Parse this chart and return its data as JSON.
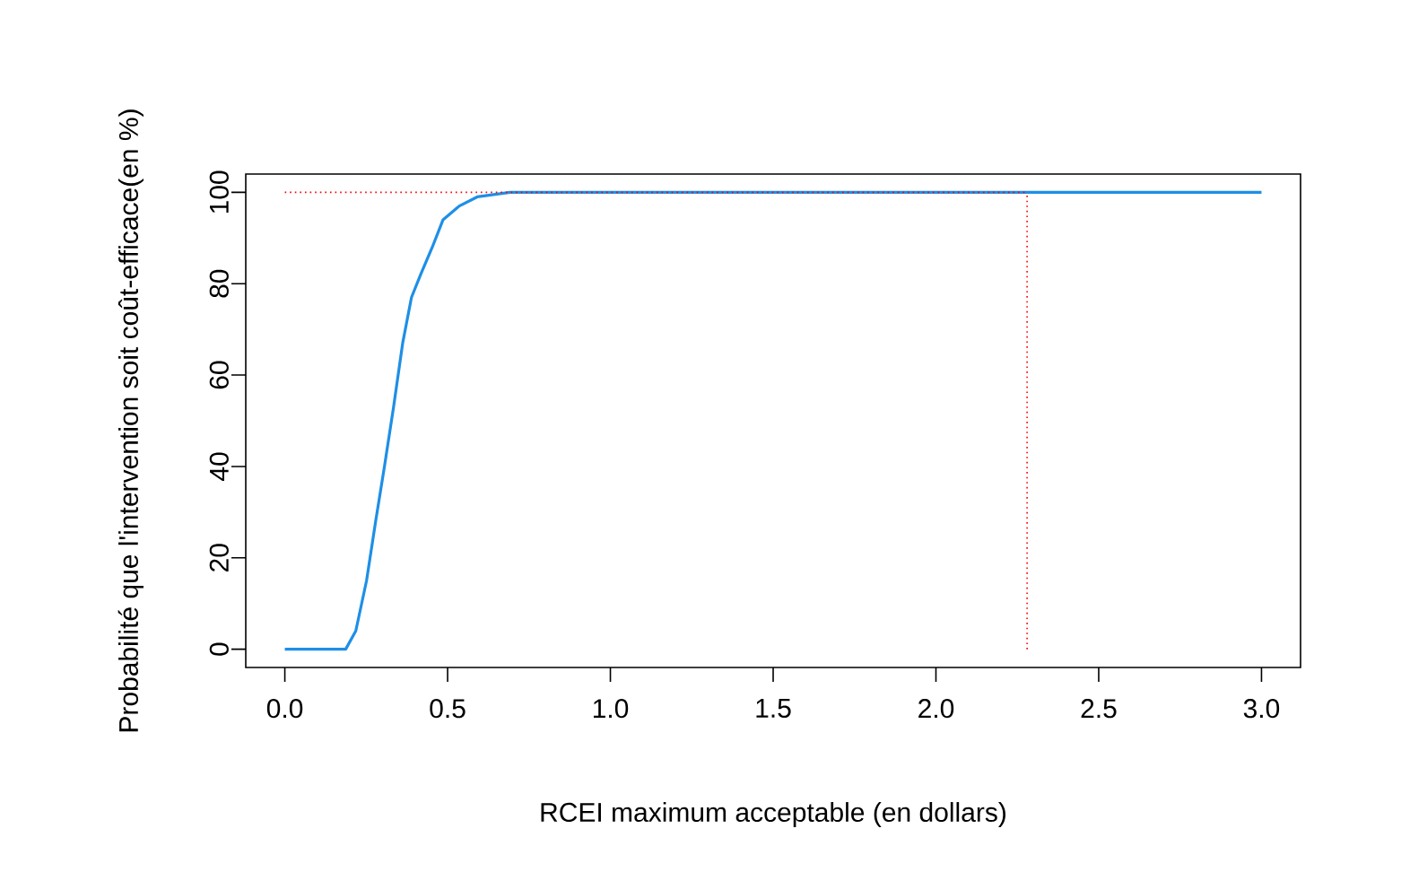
{
  "chart_data": {
    "type": "line",
    "xlabel": "RCEI maximum acceptable (en dollars)",
    "ylabel": "Probabilité que l'intervention soit coût-efficace(en %)",
    "x": [
      0,
      0.187,
      0.218,
      0.251,
      0.279,
      0.306,
      0.334,
      0.362,
      0.389,
      0.417,
      0.453,
      0.486,
      0.536,
      0.591,
      0.692,
      3.0
    ],
    "series": [
      {
        "color": "#1e8fe6",
        "values": [
          0,
          0,
          4,
          15,
          28,
          40,
          53,
          67,
          77,
          82,
          88,
          94,
          97,
          99,
          100,
          100
        ]
      }
    ],
    "xlim": [
      -0.12,
      3.12
    ],
    "ylim": [
      -4,
      104
    ],
    "xticks": [
      {
        "value": 0,
        "label": "0.0"
      },
      {
        "value": 0.5,
        "label": "0.5"
      },
      {
        "value": 1,
        "label": "1.0"
      },
      {
        "value": 1.5,
        "label": "1.5"
      },
      {
        "value": 2,
        "label": "2.0"
      },
      {
        "value": 2.5,
        "label": "2.5"
      },
      {
        "value": 3,
        "label": "3.0"
      }
    ],
    "yticks": [
      0,
      20,
      40,
      60,
      80,
      100
    ],
    "ref_lines": [
      {
        "axis": "y",
        "value": 100,
        "color": "#ff0000",
        "line_style": "dotted"
      },
      {
        "axis": "x",
        "value": 2.28,
        "color": "#ff0000",
        "line_style": "dotted"
      }
    ],
    "grid": false,
    "marker": "none",
    "line_style": "solid"
  }
}
